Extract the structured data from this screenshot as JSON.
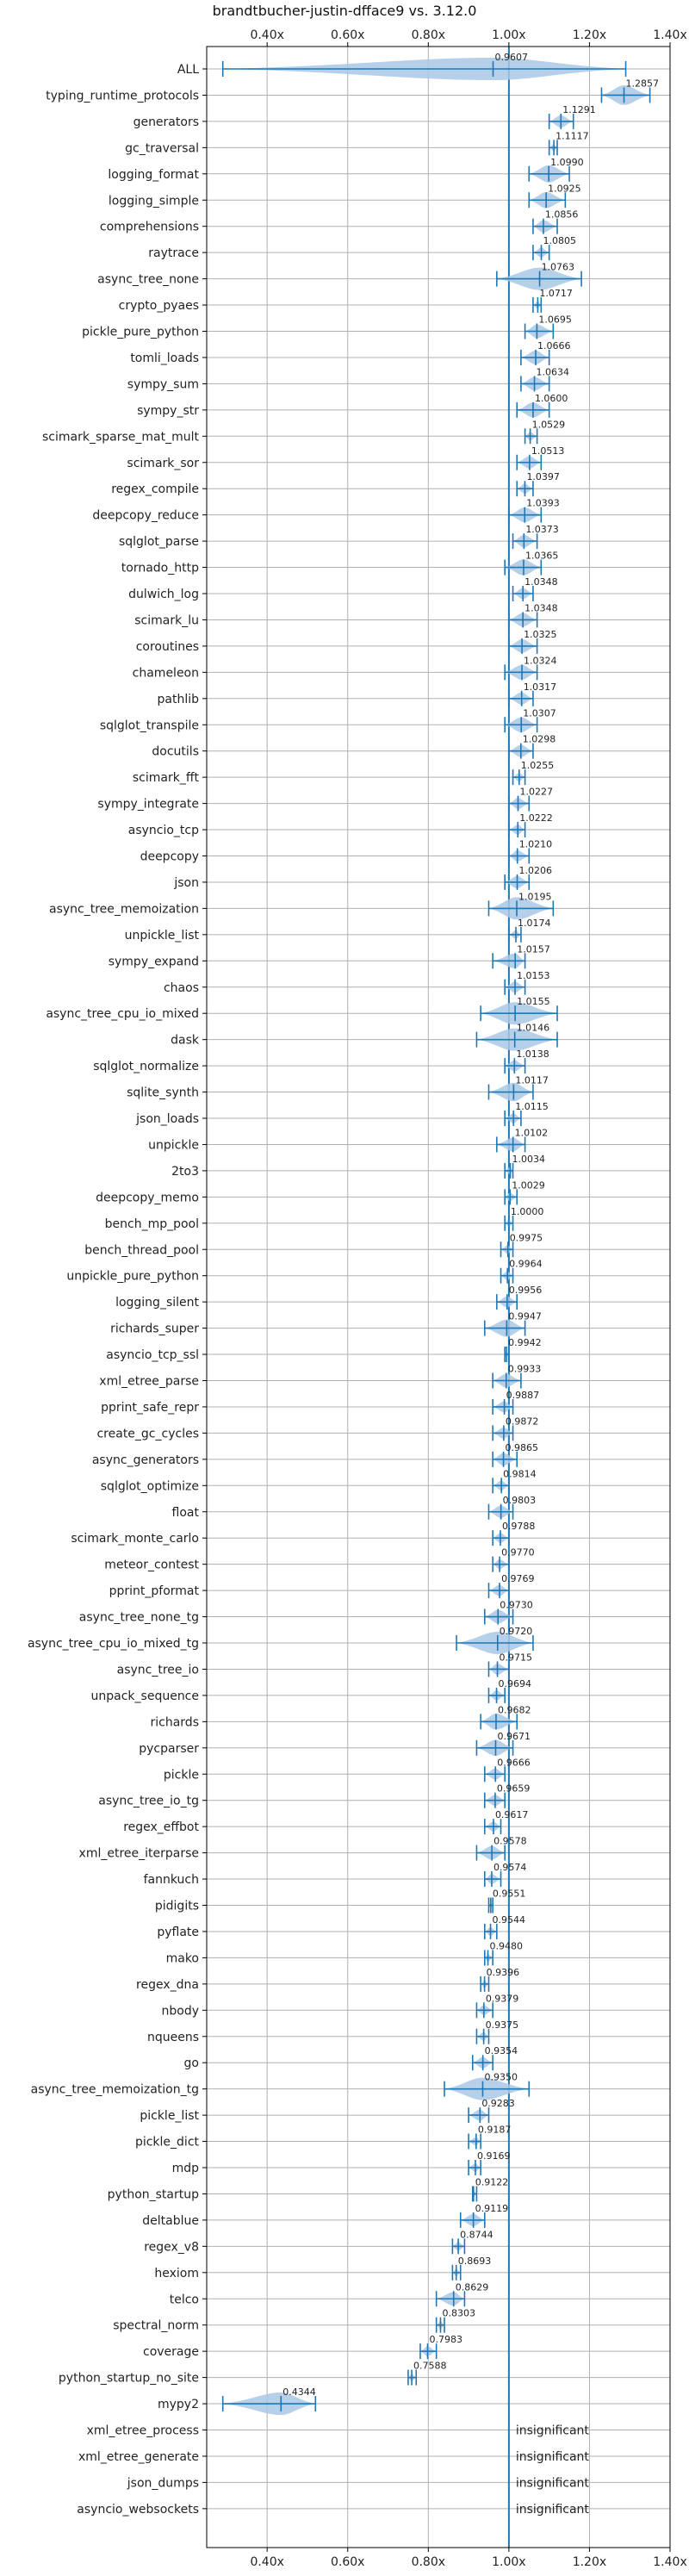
{
  "chart_data": {
    "type": "violin",
    "title": "brandtbucher-justin-dfface9 vs. 3.12.0",
    "xlabel": "",
    "ylabel": "",
    "xlim": [
      0.25,
      1.4
    ],
    "x_ticks": [
      0.4,
      0.6,
      0.8,
      1.0,
      1.2,
      1.4
    ],
    "x_tick_labels": [
      "0.40x",
      "0.60x",
      "0.80x",
      "1.00x",
      "1.20x",
      "1.40x"
    ],
    "reference_line": 1.0,
    "grid": true,
    "colors": {
      "violin": "#aac8e6",
      "line": "#1f77b4",
      "grid": "#b0b0b0",
      "text": "#222222"
    },
    "benchmarks": [
      {
        "name": "ALL",
        "value": 0.9607,
        "label": "0.9607",
        "min": 0.29,
        "max": 1.29
      },
      {
        "name": "typing_runtime_protocols",
        "value": 1.2857,
        "label": "1.2857",
        "min": 1.23,
        "max": 1.35
      },
      {
        "name": "generators",
        "value": 1.1291,
        "label": "1.1291",
        "min": 1.1,
        "max": 1.16
      },
      {
        "name": "gc_traversal",
        "value": 1.1117,
        "label": "1.1117",
        "min": 1.1,
        "max": 1.12
      },
      {
        "name": "logging_format",
        "value": 1.099,
        "label": "1.0990",
        "min": 1.05,
        "max": 1.15
      },
      {
        "name": "logging_simple",
        "value": 1.0925,
        "label": "1.0925",
        "min": 1.05,
        "max": 1.14
      },
      {
        "name": "comprehensions",
        "value": 1.0856,
        "label": "1.0856",
        "min": 1.06,
        "max": 1.12
      },
      {
        "name": "raytrace",
        "value": 1.0805,
        "label": "1.0805",
        "min": 1.06,
        "max": 1.1
      },
      {
        "name": "async_tree_none",
        "value": 1.0763,
        "label": "1.0763",
        "min": 0.97,
        "max": 1.18
      },
      {
        "name": "crypto_pyaes",
        "value": 1.0717,
        "label": "1.0717",
        "min": 1.06,
        "max": 1.08
      },
      {
        "name": "pickle_pure_python",
        "value": 1.0695,
        "label": "1.0695",
        "min": 1.04,
        "max": 1.11
      },
      {
        "name": "tomli_loads",
        "value": 1.0666,
        "label": "1.0666",
        "min": 1.03,
        "max": 1.1
      },
      {
        "name": "sympy_sum",
        "value": 1.0634,
        "label": "1.0634",
        "min": 1.03,
        "max": 1.1
      },
      {
        "name": "sympy_str",
        "value": 1.06,
        "label": "1.0600",
        "min": 1.02,
        "max": 1.1
      },
      {
        "name": "scimark_sparse_mat_mult",
        "value": 1.0529,
        "label": "1.0529",
        "min": 1.04,
        "max": 1.07
      },
      {
        "name": "scimark_sor",
        "value": 1.0513,
        "label": "1.0513",
        "min": 1.02,
        "max": 1.08
      },
      {
        "name": "regex_compile",
        "value": 1.0397,
        "label": "1.0397",
        "min": 1.02,
        "max": 1.06
      },
      {
        "name": "deepcopy_reduce",
        "value": 1.0393,
        "label": "1.0393",
        "min": 1.0,
        "max": 1.08
      },
      {
        "name": "sqlglot_parse",
        "value": 1.0373,
        "label": "1.0373",
        "min": 1.01,
        "max": 1.07
      },
      {
        "name": "tornado_http",
        "value": 1.0365,
        "label": "1.0365",
        "min": 0.99,
        "max": 1.08
      },
      {
        "name": "dulwich_log",
        "value": 1.0348,
        "label": "1.0348",
        "min": 1.01,
        "max": 1.06
      },
      {
        "name": "scimark_lu",
        "value": 1.0348,
        "label": "1.0348",
        "min": 1.0,
        "max": 1.07
      },
      {
        "name": "coroutines",
        "value": 1.0325,
        "label": "1.0325",
        "min": 1.0,
        "max": 1.07
      },
      {
        "name": "chameleon",
        "value": 1.0324,
        "label": "1.0324",
        "min": 0.99,
        "max": 1.07
      },
      {
        "name": "pathlib",
        "value": 1.0317,
        "label": "1.0317",
        "min": 1.0,
        "max": 1.06
      },
      {
        "name": "sqlglot_transpile",
        "value": 1.0307,
        "label": "1.0307",
        "min": 0.99,
        "max": 1.07
      },
      {
        "name": "docutils",
        "value": 1.0298,
        "label": "1.0298",
        "min": 1.0,
        "max": 1.06
      },
      {
        "name": "scimark_fft",
        "value": 1.0255,
        "label": "1.0255",
        "min": 1.01,
        "max": 1.04
      },
      {
        "name": "sympy_integrate",
        "value": 1.0227,
        "label": "1.0227",
        "min": 1.0,
        "max": 1.05
      },
      {
        "name": "asyncio_tcp",
        "value": 1.0222,
        "label": "1.0222",
        "min": 1.0,
        "max": 1.04
      },
      {
        "name": "deepcopy",
        "value": 1.021,
        "label": "1.0210",
        "min": 1.0,
        "max": 1.05
      },
      {
        "name": "json",
        "value": 1.0206,
        "label": "1.0206",
        "min": 0.99,
        "max": 1.05
      },
      {
        "name": "async_tree_memoization",
        "value": 1.0195,
        "label": "1.0195",
        "min": 0.95,
        "max": 1.11
      },
      {
        "name": "unpickle_list",
        "value": 1.0174,
        "label": "1.0174",
        "min": 1.0,
        "max": 1.03
      },
      {
        "name": "sympy_expand",
        "value": 1.0157,
        "label": "1.0157",
        "min": 0.96,
        "max": 1.04
      },
      {
        "name": "chaos",
        "value": 1.0153,
        "label": "1.0153",
        "min": 0.99,
        "max": 1.04
      },
      {
        "name": "async_tree_cpu_io_mixed",
        "value": 1.0155,
        "label": "1.0155",
        "min": 0.93,
        "max": 1.12
      },
      {
        "name": "dask",
        "value": 1.0146,
        "label": "1.0146",
        "min": 0.92,
        "max": 1.12
      },
      {
        "name": "sqlglot_normalize",
        "value": 1.0138,
        "label": "1.0138",
        "min": 0.99,
        "max": 1.04
      },
      {
        "name": "sqlite_synth",
        "value": 1.0117,
        "label": "1.0117",
        "min": 0.95,
        "max": 1.06
      },
      {
        "name": "json_loads",
        "value": 1.0115,
        "label": "1.0115",
        "min": 0.99,
        "max": 1.03
      },
      {
        "name": "unpickle",
        "value": 1.0102,
        "label": "1.0102",
        "min": 0.97,
        "max": 1.04
      },
      {
        "name": "2to3",
        "value": 1.0034,
        "label": "1.0034",
        "min": 0.99,
        "max": 1.01
      },
      {
        "name": "deepcopy_memo",
        "value": 1.0029,
        "label": "1.0029",
        "min": 0.99,
        "max": 1.02
      },
      {
        "name": "bench_mp_pool",
        "value": 1.0,
        "label": "1.0000",
        "min": 0.99,
        "max": 1.01
      },
      {
        "name": "bench_thread_pool",
        "value": 0.9975,
        "label": "0.9975",
        "min": 0.98,
        "max": 1.01
      },
      {
        "name": "unpickle_pure_python",
        "value": 0.9964,
        "label": "0.9964",
        "min": 0.98,
        "max": 1.01
      },
      {
        "name": "logging_silent",
        "value": 0.9956,
        "label": "0.9956",
        "min": 0.97,
        "max": 1.02
      },
      {
        "name": "richards_super",
        "value": 0.9947,
        "label": "0.9947",
        "min": 0.94,
        "max": 1.04
      },
      {
        "name": "asyncio_tcp_ssl",
        "value": 0.9942,
        "label": "0.9942",
        "min": 0.99,
        "max": 1.0
      },
      {
        "name": "xml_etree_parse",
        "value": 0.9933,
        "label": "0.9933",
        "min": 0.96,
        "max": 1.03
      },
      {
        "name": "pprint_safe_repr",
        "value": 0.9887,
        "label": "0.9887",
        "min": 0.96,
        "max": 1.01
      },
      {
        "name": "create_gc_cycles",
        "value": 0.9872,
        "label": "0.9872",
        "min": 0.96,
        "max": 1.01
      },
      {
        "name": "async_generators",
        "value": 0.9865,
        "label": "0.9865",
        "min": 0.96,
        "max": 1.02
      },
      {
        "name": "sqlglot_optimize",
        "value": 0.9814,
        "label": "0.9814",
        "min": 0.96,
        "max": 1.0
      },
      {
        "name": "float",
        "value": 0.9803,
        "label": "0.9803",
        "min": 0.95,
        "max": 1.01
      },
      {
        "name": "scimark_monte_carlo",
        "value": 0.9788,
        "label": "0.9788",
        "min": 0.96,
        "max": 1.0
      },
      {
        "name": "meteor_contest",
        "value": 0.977,
        "label": "0.9770",
        "min": 0.96,
        "max": 1.0
      },
      {
        "name": "pprint_pformat",
        "value": 0.9769,
        "label": "0.9769",
        "min": 0.95,
        "max": 1.0
      },
      {
        "name": "async_tree_none_tg",
        "value": 0.973,
        "label": "0.9730",
        "min": 0.94,
        "max": 1.01
      },
      {
        "name": "async_tree_cpu_io_mixed_tg",
        "value": 0.972,
        "label": "0.9720",
        "min": 0.87,
        "max": 1.06
      },
      {
        "name": "async_tree_io",
        "value": 0.9715,
        "label": "0.9715",
        "min": 0.95,
        "max": 1.0
      },
      {
        "name": "unpack_sequence",
        "value": 0.9694,
        "label": "0.9694",
        "min": 0.95,
        "max": 0.99
      },
      {
        "name": "richards",
        "value": 0.9682,
        "label": "0.9682",
        "min": 0.93,
        "max": 1.02
      },
      {
        "name": "pycparser",
        "value": 0.9671,
        "label": "0.9671",
        "min": 0.92,
        "max": 1.01
      },
      {
        "name": "pickle",
        "value": 0.9666,
        "label": "0.9666",
        "min": 0.94,
        "max": 0.99
      },
      {
        "name": "async_tree_io_tg",
        "value": 0.9659,
        "label": "0.9659",
        "min": 0.94,
        "max": 0.99
      },
      {
        "name": "regex_effbot",
        "value": 0.9617,
        "label": "0.9617",
        "min": 0.94,
        "max": 0.98
      },
      {
        "name": "xml_etree_iterparse",
        "value": 0.9578,
        "label": "0.9578",
        "min": 0.92,
        "max": 0.99
      },
      {
        "name": "fannkuch",
        "value": 0.9574,
        "label": "0.9574",
        "min": 0.94,
        "max": 0.98
      },
      {
        "name": "pidigits",
        "value": 0.9551,
        "label": "0.9551",
        "min": 0.95,
        "max": 0.96
      },
      {
        "name": "pyflate",
        "value": 0.9544,
        "label": "0.9544",
        "min": 0.94,
        "max": 0.97
      },
      {
        "name": "mako",
        "value": 0.948,
        "label": "0.9480",
        "min": 0.94,
        "max": 0.96
      },
      {
        "name": "regex_dna",
        "value": 0.9396,
        "label": "0.9396",
        "min": 0.93,
        "max": 0.95
      },
      {
        "name": "nbody",
        "value": 0.9379,
        "label": "0.9379",
        "min": 0.92,
        "max": 0.96
      },
      {
        "name": "nqueens",
        "value": 0.9375,
        "label": "0.9375",
        "min": 0.92,
        "max": 0.95
      },
      {
        "name": "go",
        "value": 0.9354,
        "label": "0.9354",
        "min": 0.91,
        "max": 0.96
      },
      {
        "name": "async_tree_memoization_tg",
        "value": 0.935,
        "label": "0.9350",
        "min": 0.84,
        "max": 1.05
      },
      {
        "name": "pickle_list",
        "value": 0.9283,
        "label": "0.9283",
        "min": 0.9,
        "max": 0.95
      },
      {
        "name": "pickle_dict",
        "value": 0.9187,
        "label": "0.9187",
        "min": 0.9,
        "max": 0.93
      },
      {
        "name": "mdp",
        "value": 0.9169,
        "label": "0.9169",
        "min": 0.9,
        "max": 0.93
      },
      {
        "name": "python_startup",
        "value": 0.9122,
        "label": "0.9122",
        "min": 0.91,
        "max": 0.92
      },
      {
        "name": "deltablue",
        "value": 0.9119,
        "label": "0.9119",
        "min": 0.88,
        "max": 0.94
      },
      {
        "name": "regex_v8",
        "value": 0.8744,
        "label": "0.8744",
        "min": 0.86,
        "max": 0.89
      },
      {
        "name": "hexiom",
        "value": 0.8693,
        "label": "0.8693",
        "min": 0.86,
        "max": 0.88
      },
      {
        "name": "telco",
        "value": 0.8629,
        "label": "0.8629",
        "min": 0.82,
        "max": 0.89
      },
      {
        "name": "spectral_norm",
        "value": 0.8303,
        "label": "0.8303",
        "min": 0.82,
        "max": 0.84
      },
      {
        "name": "coverage",
        "value": 0.7983,
        "label": "0.7983",
        "min": 0.78,
        "max": 0.82
      },
      {
        "name": "python_startup_no_site",
        "value": 0.7588,
        "label": "0.7588",
        "min": 0.75,
        "max": 0.77
      },
      {
        "name": "mypy2",
        "value": 0.4344,
        "label": "0.4344",
        "min": 0.29,
        "max": 0.52
      },
      {
        "name": "xml_etree_process",
        "value": null,
        "label": "insignificant"
      },
      {
        "name": "xml_etree_generate",
        "value": null,
        "label": "insignificant"
      },
      {
        "name": "json_dumps",
        "value": null,
        "label": "insignificant"
      },
      {
        "name": "asyncio_websockets",
        "value": null,
        "label": "insignificant"
      }
    ]
  }
}
